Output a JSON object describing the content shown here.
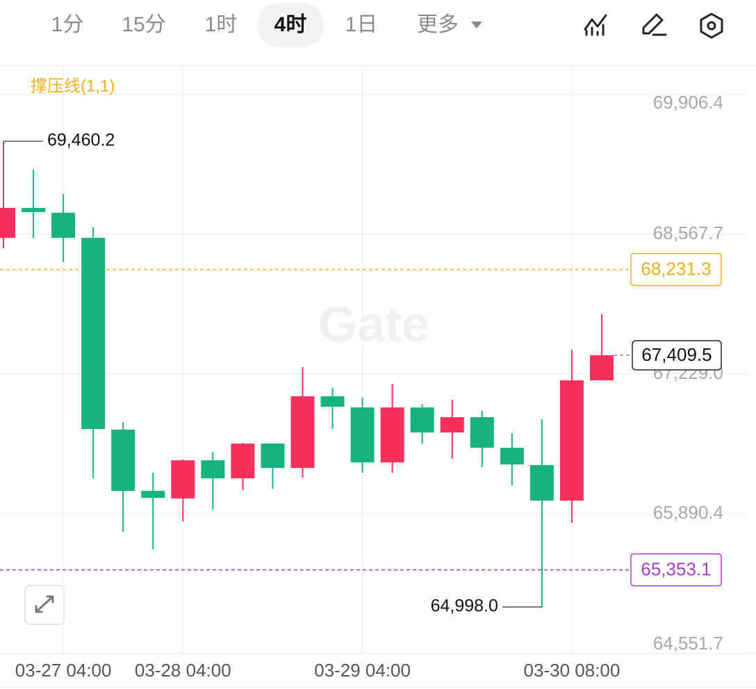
{
  "toolbar": {
    "intervals": [
      "1分",
      "15分",
      "1时",
      "4时",
      "1日",
      "更多"
    ],
    "active": 3
  },
  "chart_data": {
    "type": "candlestick",
    "indicator": "撑压线(1,1)",
    "indicator_color": "#e9b21d",
    "watermark": "Gate",
    "up_color": "#f5305c",
    "down_color": "#16b47c",
    "axis": "right",
    "grid": true,
    "categories": [
      null,
      null,
      "03-27 04:00",
      null,
      null,
      null,
      "03-28 04:00",
      null,
      null,
      null,
      null,
      null,
      "03-29 04:00",
      null,
      null,
      null,
      null,
      null,
      null,
      "03-30 08:00",
      null
    ],
    "open": [
      68534,
      68821,
      68774,
      68534,
      66696,
      66110,
      66037,
      66403,
      66230,
      66563,
      66330,
      67016,
      66909,
      66383,
      66909,
      66670,
      66816,
      66523,
      66357,
      66017,
      67169
    ],
    "high": [
      69460.2,
      69187,
      68954,
      68634,
      66769,
      66283,
      66410,
      66483,
      66570,
      66563,
      67296,
      67096,
      67003,
      67136,
      66943,
      66983,
      66876,
      66663,
      66796,
      67462,
      67802
    ],
    "low": [
      68434,
      68534,
      68301,
      66230,
      65717,
      65551,
      65817,
      65930,
      66117,
      66130,
      66237,
      66703,
      66283,
      66283,
      66563,
      66416,
      66337,
      66163,
      64998.0,
      65804,
      67169
    ],
    "close": [
      68821,
      68781,
      68534,
      66703,
      66110,
      66044,
      66403,
      66230,
      66563,
      66330,
      67016,
      66916,
      66383,
      66909,
      66670,
      66816,
      66523,
      66363,
      66017,
      67169,
      67409.5
    ],
    "extreme_labels": [
      {
        "value": 69460.2,
        "label": "69,460.2"
      },
      {
        "value": 64998.0,
        "label": "64,998.0"
      }
    ],
    "price_lines": [
      {
        "value": 68231.3,
        "label": "68,231.3",
        "color": "#e9b21d"
      },
      {
        "value": 65353.1,
        "label": "65,353.1",
        "color": "#a43fc6"
      }
    ],
    "last_price": {
      "value": 67409.5,
      "label": "67,409.5"
    },
    "ylim": [
      64551.7,
      70180
    ],
    "yticks": [
      {
        "value": 64551.7,
        "label": "64,551.7"
      },
      {
        "value": 65890.4,
        "label": "65,890.4"
      },
      {
        "value": 67229.0,
        "label": "67,229.0"
      },
      {
        "value": 68567.7,
        "label": "68,567.7"
      },
      {
        "value": 69906.4,
        "label": "69,906.4"
      }
    ]
  }
}
